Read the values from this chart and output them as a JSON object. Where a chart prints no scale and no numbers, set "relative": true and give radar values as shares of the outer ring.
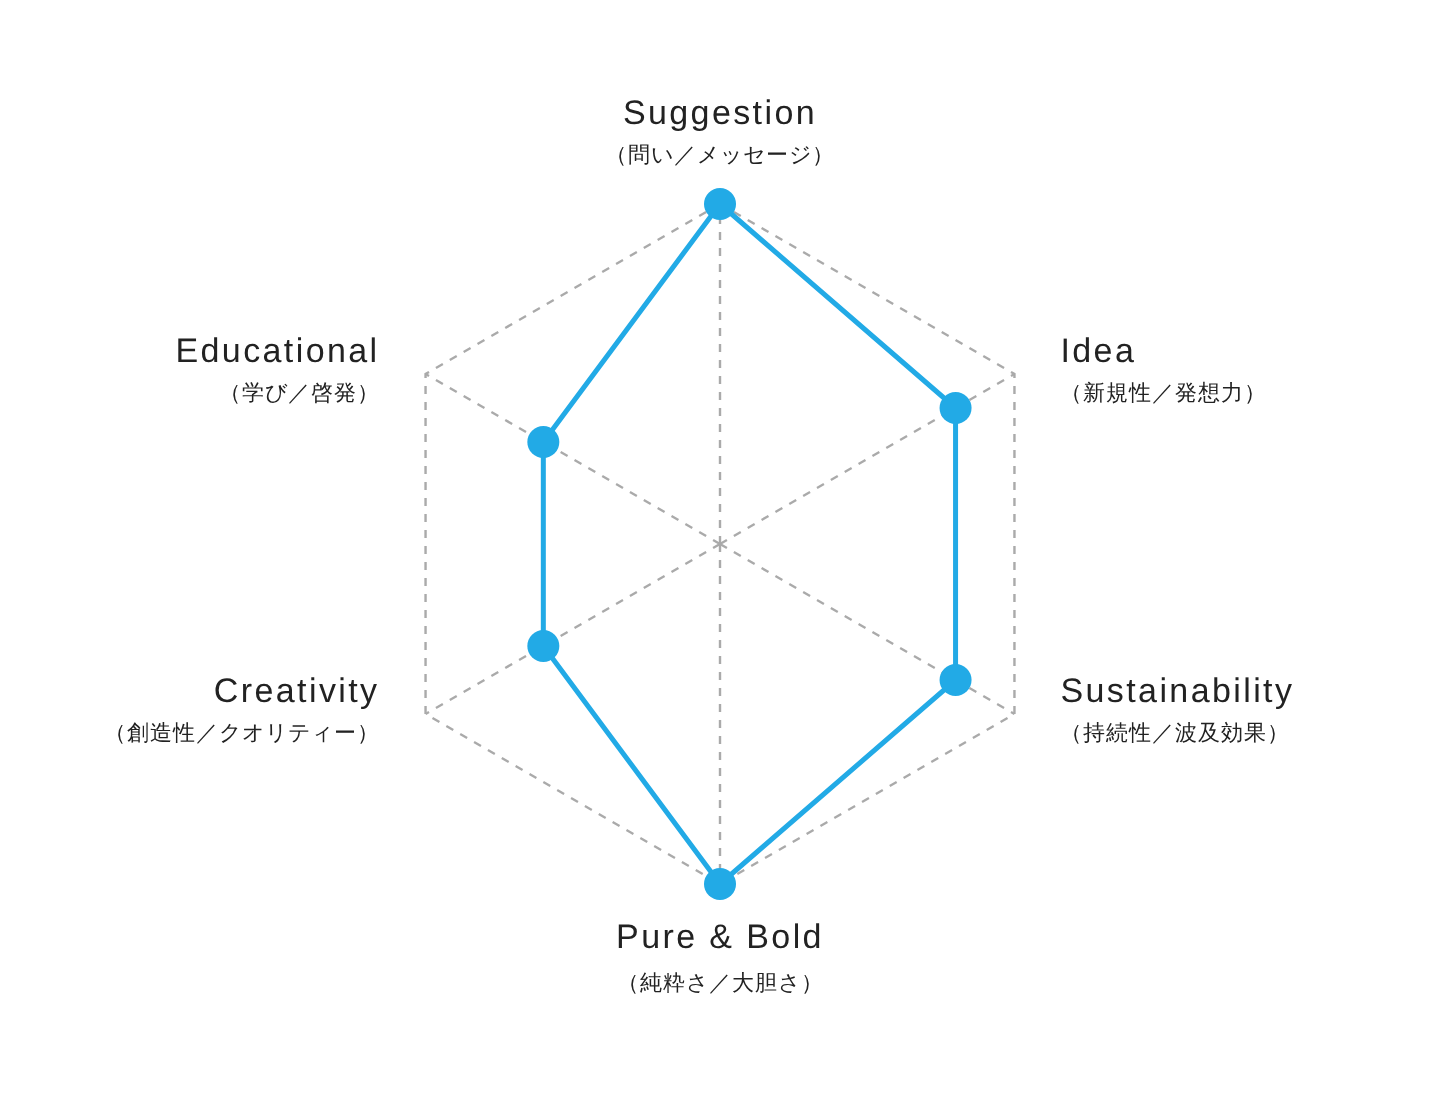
{
  "chart_data": {
    "type": "radar",
    "categories": [
      "Suggestion\n（問い／メッセージ）",
      "Idea\n（新規性／発想力）",
      "Sustainability\n（持続性／波及効果）",
      "Pure & Bold\n（純粋さ／大胆さ）",
      "Creativity\n（創造性／クオリティー）",
      "Educational\n（学び／啓発）"
    ],
    "series": [
      {
        "color": "#22aae6",
        "values": [
          1,
          0.8,
          0.8,
          1,
          0.6,
          0.6
        ]
      }
    ],
    "relative": true,
    "grid": true,
    "marker": "circle",
    "line_style": "solid"
  }
}
